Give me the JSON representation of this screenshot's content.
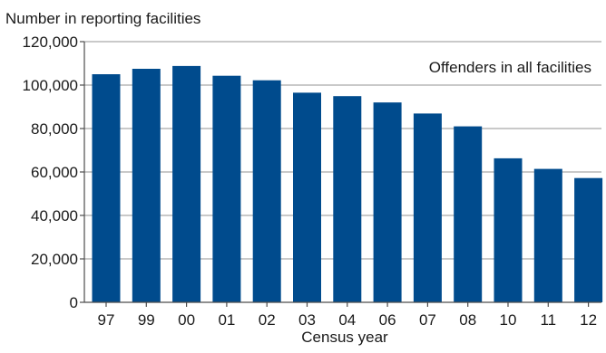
{
  "chart_data": {
    "type": "bar",
    "ylabel": "Number in reporting facilities",
    "xlabel": "Census year",
    "annotation": "Offenders in all facilities",
    "categories": [
      "97",
      "99",
      "00",
      "01",
      "02",
      "03",
      "04",
      "06",
      "07",
      "08",
      "10",
      "11",
      "12"
    ],
    "values": [
      105000,
      107500,
      108800,
      104300,
      102200,
      96500,
      94900,
      92000,
      86900,
      81000,
      66300,
      61400,
      57200
    ],
    "ylim": [
      0,
      120000
    ],
    "yticks": [
      0,
      20000,
      40000,
      60000,
      80000,
      100000,
      120000
    ],
    "ytick_labels": [
      "0",
      "20,000",
      "40,000",
      "60,000",
      "80,000",
      "100,000",
      "120,000"
    ],
    "grid": true,
    "colors": {
      "bar": "#004b8d",
      "grid": "#a9a9a9",
      "axis": "#4d4d4d"
    }
  }
}
